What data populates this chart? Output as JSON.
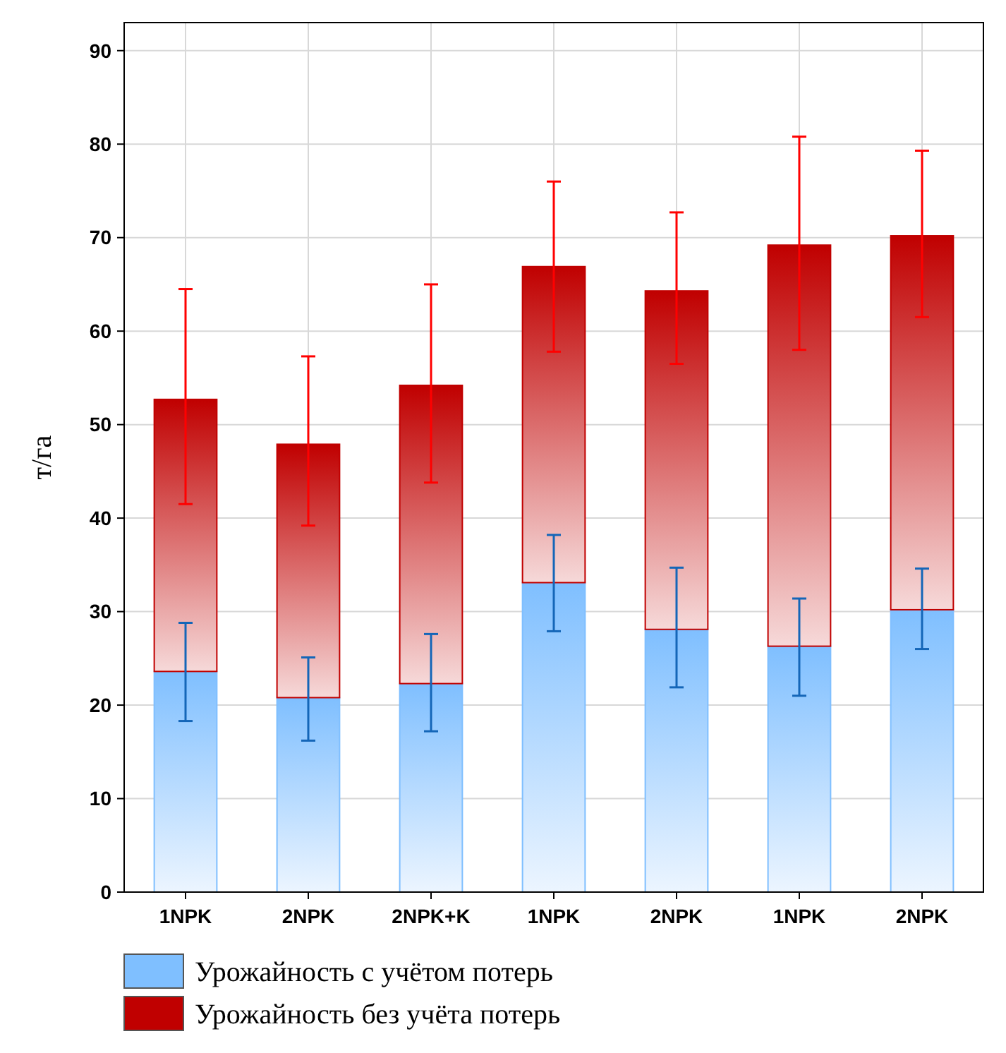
{
  "chart_data": {
    "type": "bar",
    "stacked": true,
    "ylabel": "т/га",
    "categories": [
      "1NPK",
      "2NPK",
      "2NPK+K",
      "1NPK",
      "2NPK",
      "1NPK",
      "2NPK"
    ],
    "series": [
      {
        "name": "Урожайность с учётом потерь",
        "color": "#7fbfff",
        "values": [
          23.6,
          20.8,
          22.3,
          33.1,
          28.1,
          26.3,
          30.2
        ],
        "errors": [
          [
            18.3,
            28.8
          ],
          [
            16.2,
            25.1
          ],
          [
            17.2,
            27.6
          ],
          [
            27.9,
            38.2
          ],
          [
            21.9,
            34.7
          ],
          [
            21.0,
            31.4
          ],
          [
            26.0,
            34.6
          ]
        ]
      },
      {
        "name": "Урожайность без учёта потерь",
        "color": "#c00000",
        "values": [
          29.1,
          27.1,
          31.9,
          33.8,
          36.2,
          42.9,
          40.0
        ],
        "errors": [
          [
            41.5,
            64.5
          ],
          [
            39.2,
            57.3
          ],
          [
            43.8,
            65.0
          ],
          [
            57.8,
            76.0
          ],
          [
            56.5,
            72.7
          ],
          [
            58.0,
            80.8
          ],
          [
            61.5,
            79.3
          ]
        ]
      }
    ],
    "ylim": [
      0,
      93
    ],
    "yticks": [
      0,
      10,
      20,
      30,
      40,
      50,
      60,
      70,
      80,
      90
    ],
    "grid": true,
    "legend": "bottom"
  }
}
